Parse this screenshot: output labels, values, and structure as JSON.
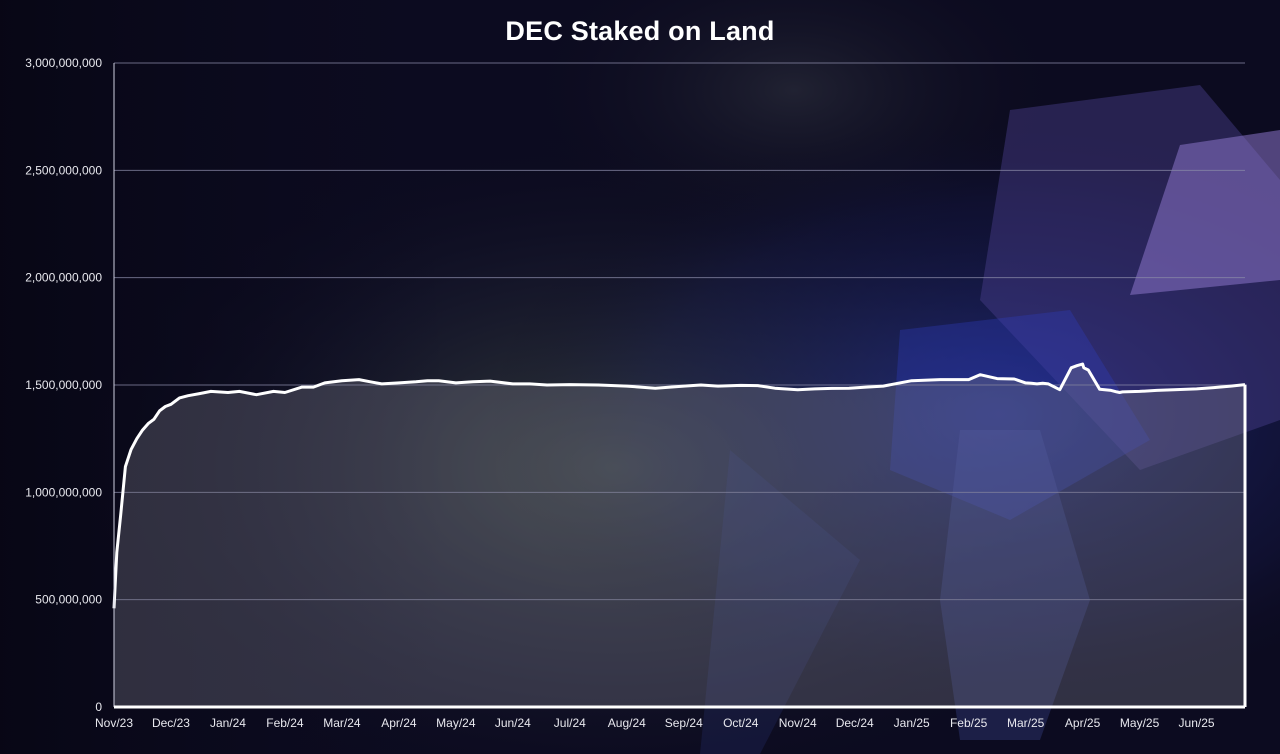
{
  "colors": {
    "background": "#0b0a1c",
    "line": "#ffffff",
    "area_fill": "rgba(120,120,135,0.35)",
    "gridline": "#8a8aa8",
    "title": "#ffffff"
  },
  "chart_data": {
    "type": "area",
    "title": "DEC Staked on Land",
    "xlabel": "",
    "ylabel": "",
    "ylim": [
      0,
      3000000000
    ],
    "yticks": [
      0,
      500000000,
      1000000000,
      1500000000,
      2000000000,
      2500000000,
      3000000000
    ],
    "ytick_labels": [
      "0",
      "500,000,000",
      "1,000,000,000",
      "1,500,000,000",
      "2,000,000,000",
      "2,500,000,000",
      "3,000,000,000"
    ],
    "xtick_labels": [
      "Nov/23",
      "Dec/23",
      "Jan/24",
      "Feb/24",
      "Mar/24",
      "Apr/24",
      "May/24",
      "Jun/24",
      "Jul/24",
      "Aug/24",
      "Sep/24",
      "Oct/24",
      "Nov/24",
      "Dec/24",
      "Jan/25",
      "Feb/25",
      "Mar/25",
      "Apr/25",
      "May/25",
      "Jun/25"
    ],
    "grid": true,
    "legend": "none",
    "series": [
      {
        "x": [
          0,
          0.05,
          0.12,
          0.2,
          0.3,
          0.4,
          0.5,
          0.6,
          0.7,
          0.8,
          0.9,
          1.0,
          1.15,
          1.3,
          1.5,
          1.7,
          2.0,
          2.2,
          2.5,
          2.8,
          3.0,
          3.3,
          3.5,
          3.7,
          4.0,
          4.3,
          4.5,
          4.7,
          5.0,
          5.3,
          5.5,
          5.7,
          6.0,
          6.3,
          6.6,
          7.0,
          7.3,
          7.6,
          8.0,
          8.5,
          9.0,
          9.5,
          10.0,
          10.3,
          10.6,
          11.0,
          11.3,
          11.6,
          12.0,
          12.3,
          12.6,
          12.9,
          13.2,
          13.5,
          14.0,
          14.5,
          14.8,
          15.0,
          15.2,
          15.5,
          15.8,
          16.0,
          16.1,
          16.2,
          16.3,
          16.4,
          16.6,
          16.8,
          16.9,
          17.0,
          17.02,
          17.1,
          17.3,
          17.5,
          17.6,
          17.65,
          17.7,
          18.0,
          18.3,
          18.6,
          19.0,
          19.3,
          19.6,
          19.85
        ],
        "values": [
          460000000,
          720000000,
          900000000,
          1120000000,
          1200000000,
          1250000000,
          1290000000,
          1320000000,
          1340000000,
          1380000000,
          1400000000,
          1410000000,
          1440000000,
          1450000000,
          1460000000,
          1470000000,
          1465000000,
          1470000000,
          1455000000,
          1470000000,
          1465000000,
          1490000000,
          1490000000,
          1510000000,
          1520000000,
          1525000000,
          1515000000,
          1505000000,
          1510000000,
          1515000000,
          1520000000,
          1520000000,
          1510000000,
          1515000000,
          1518000000,
          1505000000,
          1505000000,
          1500000000,
          1502000000,
          1500000000,
          1495000000,
          1485000000,
          1495000000,
          1500000000,
          1495000000,
          1498000000,
          1497000000,
          1485000000,
          1478000000,
          1482000000,
          1484000000,
          1485000000,
          1490000000,
          1495000000,
          1520000000,
          1525000000,
          1525000000,
          1525000000,
          1548000000,
          1530000000,
          1528000000,
          1510000000,
          1508000000,
          1505000000,
          1508000000,
          1505000000,
          1478000000,
          1580000000,
          1590000000,
          1598000000,
          1580000000,
          1570000000,
          1480000000,
          1475000000,
          1468000000,
          1465000000,
          1468000000,
          1470000000,
          1475000000,
          1478000000,
          1482000000,
          1488000000,
          1495000000,
          1502000000
        ]
      }
    ]
  }
}
